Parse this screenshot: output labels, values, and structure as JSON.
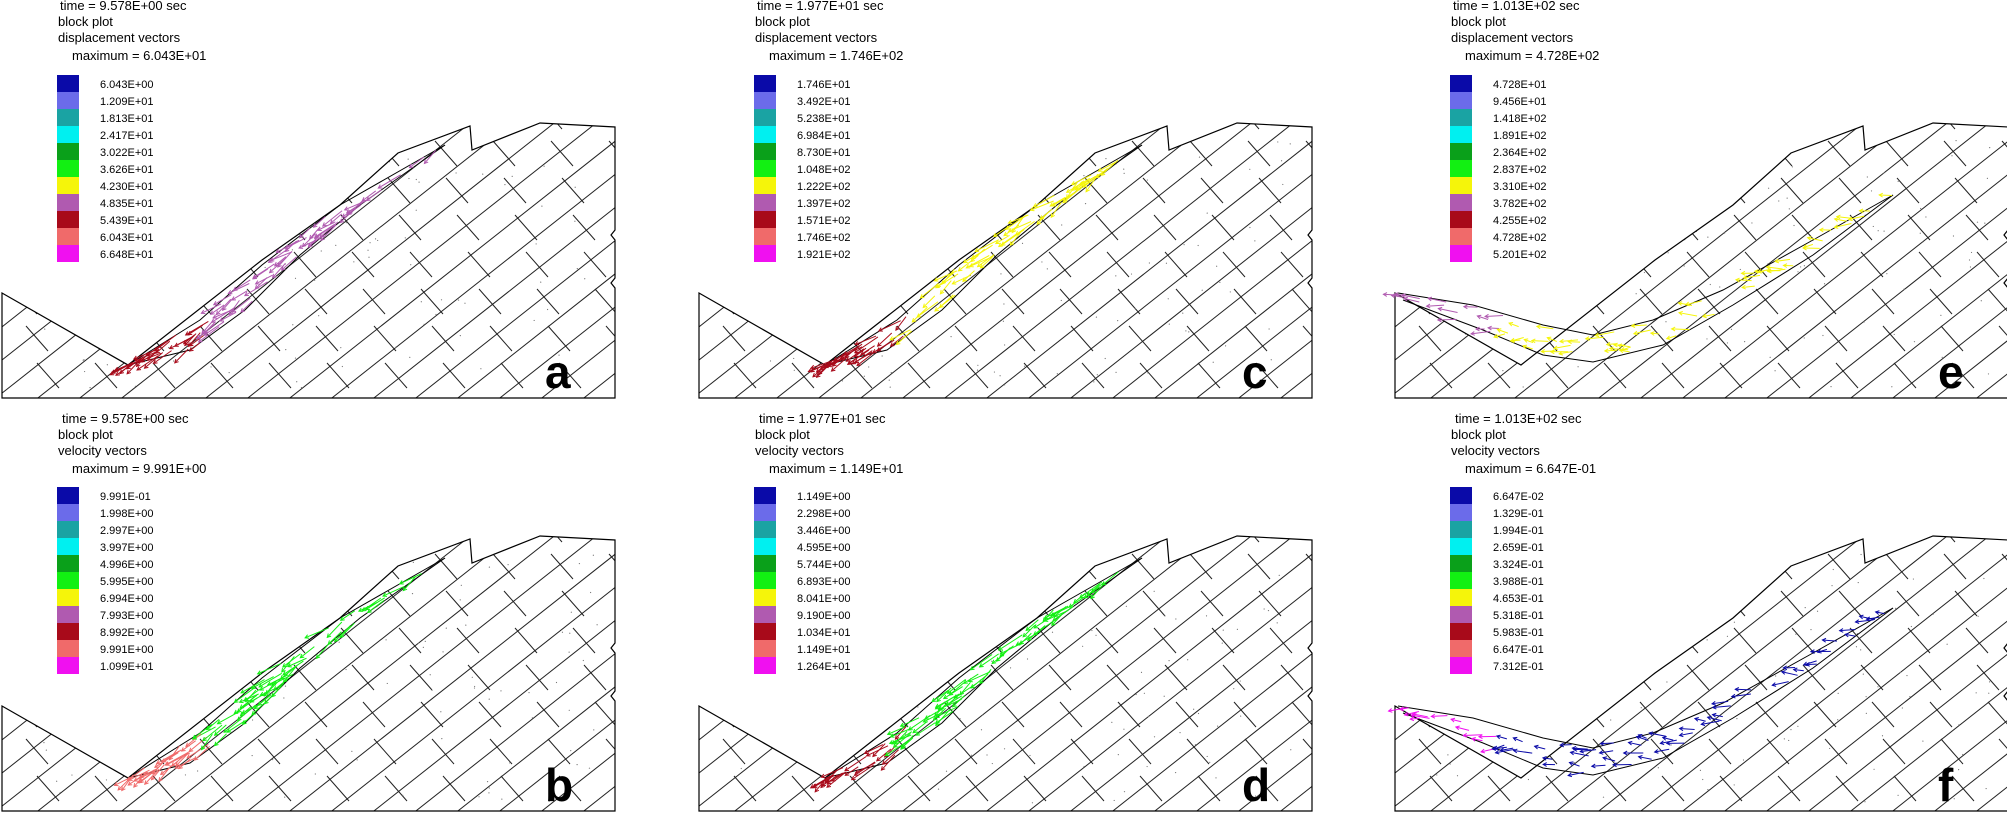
{
  "colors": {
    "legend": [
      "#0a0aa8",
      "#6b6bea",
      "#1aa3a3",
      "#00f0f0",
      "#0aa01a",
      "#12f012",
      "#f5f50a",
      "#b05ab0",
      "#a80a1a",
      "#f06a6a",
      "#f010f0"
    ],
    "outline": "#000000",
    "joints": "#222222"
  },
  "panels": [
    {
      "label": "a",
      "time": "time  =  9.578E+00 sec",
      "plot": "block plot",
      "kind": "displacement vectors",
      "maximum": "maximum =    6.043E+01",
      "legend": [
        "6.043E+00",
        "1.209E+01",
        "1.813E+01",
        "2.417E+01",
        "3.022E+01",
        "3.626E+01",
        "4.230E+01",
        "4.835E+01",
        "5.439E+01",
        "6.043E+01",
        "6.648E+01"
      ],
      "vector_color": "#b05ab0",
      "accent_color": "#a80a1a"
    },
    {
      "label": "c",
      "time": "time  =  1.977E+01 sec",
      "plot": "block plot",
      "kind": "displacement vectors",
      "maximum": "maximum =    1.746E+02",
      "legend": [
        "1.746E+01",
        "3.492E+01",
        "5.238E+01",
        "6.984E+01",
        "8.730E+01",
        "1.048E+02",
        "1.222E+02",
        "1.397E+02",
        "1.571E+02",
        "1.746E+02",
        "1.921E+02"
      ],
      "vector_color": "#f5f50a",
      "accent_color": "#a80a1a"
    },
    {
      "label": "e",
      "time": "time  =  1.013E+02 sec",
      "plot": "block plot",
      "kind": "displacement vectors",
      "maximum": "maximum =    4.728E+02",
      "legend": [
        "4.728E+01",
        "9.456E+01",
        "1.418E+02",
        "1.891E+02",
        "2.364E+02",
        "2.837E+02",
        "3.310E+02",
        "3.782E+02",
        "4.255E+02",
        "4.728E+02",
        "5.201E+02"
      ],
      "vector_color": "#f5f50a",
      "accent_color": "#b05ab0"
    },
    {
      "label": "b",
      "time": "time  =  9.578E+00 sec",
      "plot": "block plot",
      "kind": "velocity vectors",
      "maximum": "maximum =    9.991E+00",
      "legend": [
        "9.991E-01",
        "1.998E+00",
        "2.997E+00",
        "3.997E+00",
        "4.996E+00",
        "5.995E+00",
        "6.994E+00",
        "7.993E+00",
        "8.992E+00",
        "9.991E+00",
        "1.099E+01"
      ],
      "vector_color": "#12f012",
      "accent_color": "#f06a6a"
    },
    {
      "label": "d",
      "time": "time  =  1.977E+01 sec",
      "plot": "block plot",
      "kind": "velocity vectors",
      "maximum": "maximum =    1.149E+01",
      "legend": [
        "1.149E+00",
        "2.298E+00",
        "3.446E+00",
        "4.595E+00",
        "5.744E+00",
        "6.893E+00",
        "8.041E+00",
        "9.190E+00",
        "1.034E+01",
        "1.149E+01",
        "1.264E+01"
      ],
      "vector_color": "#12f012",
      "accent_color": "#a80a1a"
    },
    {
      "label": "f",
      "time": "time  =  1.013E+02 sec",
      "plot": "block plot",
      "kind": "velocity vectors",
      "maximum": "maximum =    6.647E-01",
      "legend": [
        "6.647E-02",
        "1.329E-01",
        "1.994E-01",
        "2.659E-01",
        "3.324E-01",
        "3.988E-01",
        "4.653E-01",
        "5.318E-01",
        "5.983E-01",
        "6.647E-01",
        "7.312E-01"
      ],
      "vector_color": "#0a0aa8",
      "accent_color": "#f010f0"
    }
  ]
}
